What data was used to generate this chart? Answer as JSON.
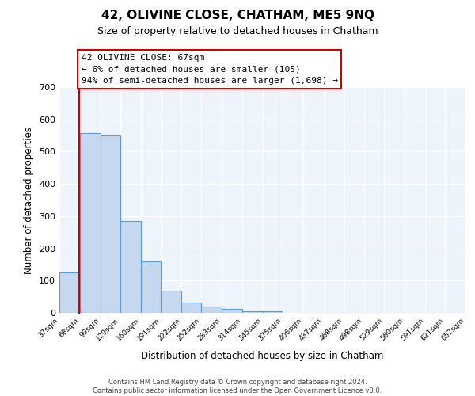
{
  "title": "42, OLIVINE CLOSE, CHATHAM, ME5 9NQ",
  "subtitle": "Size of property relative to detached houses in Chatham",
  "xlabel": "Distribution of detached houses by size in Chatham",
  "ylabel": "Number of detached properties",
  "bin_labels": [
    "37sqm",
    "68sqm",
    "99sqm",
    "129sqm",
    "160sqm",
    "191sqm",
    "222sqm",
    "252sqm",
    "283sqm",
    "314sqm",
    "345sqm",
    "375sqm",
    "406sqm",
    "437sqm",
    "468sqm",
    "498sqm",
    "529sqm",
    "560sqm",
    "591sqm",
    "621sqm",
    "652sqm"
  ],
  "bin_edges": [
    37,
    68,
    99,
    129,
    160,
    191,
    222,
    252,
    283,
    314,
    345,
    375,
    406,
    437,
    468,
    498,
    529,
    560,
    591,
    621,
    652
  ],
  "bar_heights": [
    125,
    558,
    550,
    284,
    160,
    68,
    33,
    19,
    13,
    5,
    4,
    0,
    0,
    0,
    0,
    0,
    0,
    0,
    0,
    0
  ],
  "bar_color": "#c5d8f0",
  "bar_edge_color": "#5b9bd5",
  "ylim_max": 700,
  "yticks": [
    0,
    100,
    200,
    300,
    400,
    500,
    600,
    700
  ],
  "property_line_x": 67,
  "property_line_color": "#cc0000",
  "annotation_title": "42 OLIVINE CLOSE: 67sqm",
  "annotation_line1": "← 6% of detached houses are smaller (105)",
  "annotation_line2": "94% of semi-detached houses are larger (1,698) →",
  "annotation_box_bg": "#ffffff",
  "annotation_box_edge": "#cc0000",
  "background_color": "#eef4fb",
  "grid_color": "#ffffff",
  "fig_bg": "#ffffff",
  "footer1": "Contains HM Land Registry data © Crown copyright and database right 2024.",
  "footer2": "Contains public sector information licensed under the Open Government Licence v3.0."
}
